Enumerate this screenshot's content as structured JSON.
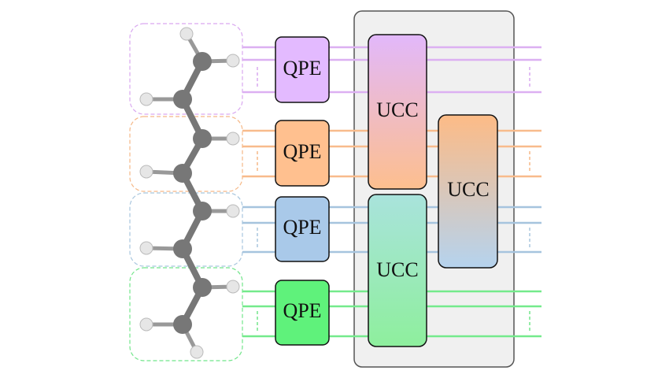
{
  "qpe_blocks": [
    {
      "label": "QPE"
    },
    {
      "label": "QPE"
    },
    {
      "label": "QPE"
    },
    {
      "label": "QPE"
    }
  ],
  "ucc_blocks": [
    {
      "label": "UCC"
    },
    {
      "label": "UCC"
    },
    {
      "label": "UCC"
    }
  ]
}
